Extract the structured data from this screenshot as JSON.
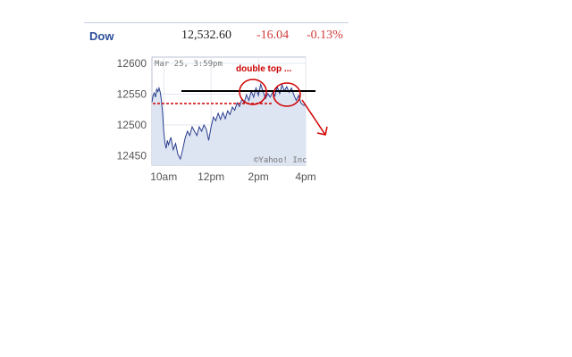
{
  "quote": {
    "symbol": "Dow",
    "price": "12,532.60",
    "change": "-16.04",
    "change_pct": "-0.13%"
  },
  "chart": {
    "timestamp": "Mar 25, 3:59pm",
    "watermark": "©Yahoo! Inc",
    "annotation": "double top ...",
    "colors": {
      "line": "#2b3f8f",
      "fill": "#dde4f2",
      "annotation": "#cc0000",
      "resistance": "#000000"
    }
  },
  "chart_data": {
    "type": "area",
    "title": "",
    "xlabel": "",
    "ylabel": "",
    "x_ticks": [
      "10am",
      "12pm",
      "2pm",
      "4pm"
    ],
    "y_ticks": [
      12600,
      12550,
      12500,
      12450
    ],
    "xlim": [
      9.5,
      16.0
    ],
    "ylim": [
      12435,
      12610
    ],
    "grid": true,
    "series": [
      {
        "x": [
          9.5,
          9.55,
          9.6,
          9.65,
          9.7,
          9.75,
          9.8,
          9.85,
          9.9,
          9.95,
          10.0,
          10.05,
          10.1,
          10.15,
          10.2,
          10.3,
          10.4,
          10.5,
          10.6,
          10.7,
          10.8,
          10.9,
          11.0,
          11.1,
          11.2,
          11.3,
          11.4,
          11.5,
          11.6,
          11.7,
          11.8,
          11.9,
          12.0,
          12.1,
          12.2,
          12.3,
          12.4,
          12.5,
          12.6,
          12.7,
          12.8,
          12.9,
          13.0,
          13.1,
          13.2,
          13.3,
          13.4,
          13.5,
          13.6,
          13.7,
          13.8,
          13.9,
          14.0,
          14.1,
          14.2,
          14.3,
          14.4,
          14.5,
          14.6,
          14.7,
          14.8,
          14.9,
          15.0,
          15.1,
          15.2,
          15.3,
          15.4,
          15.5,
          15.6,
          15.7,
          15.8,
          15.9,
          16.0
        ],
        "values": [
          12537,
          12548,
          12552,
          12545,
          12558,
          12554,
          12560,
          12553,
          12540,
          12520,
          12490,
          12470,
          12462,
          12475,
          12468,
          12480,
          12460,
          12470,
          12452,
          12445,
          12460,
          12478,
          12490,
          12483,
          12497,
          12490,
          12483,
          12497,
          12490,
          12500,
          12493,
          12475,
          12497,
          12513,
          12507,
          12519,
          12509,
          12520,
          12510,
          12523,
          12517,
          12529,
          12524,
          12536,
          12530,
          12542,
          12536,
          12549,
          12540,
          12555,
          12545,
          12560,
          12548,
          12566,
          12554,
          12543,
          12551,
          12545,
          12553,
          12547,
          12562,
          12551,
          12565,
          12555,
          12562,
          12553,
          12560,
          12549,
          12540,
          12548,
          12536,
          12532,
          12532
        ]
      }
    ]
  }
}
